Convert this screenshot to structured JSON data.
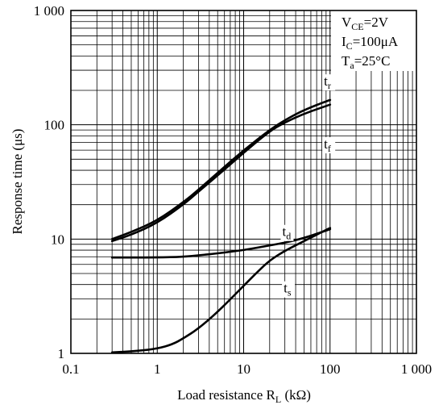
{
  "chart_data": {
    "type": "line",
    "xlabel": "Load resistance R",
    "xlabel_sub": "L",
    "xlabel_unit": " (kΩ)",
    "ylabel": "Response time (μs)",
    "xscale": "log",
    "yscale": "log",
    "xlim": [
      0.1,
      1000
    ],
    "ylim": [
      1,
      1000
    ],
    "grid": true,
    "x_ticks": [
      {
        "value": 0.1,
        "label": "0.1"
      },
      {
        "value": 1,
        "label": "1"
      },
      {
        "value": 10,
        "label": "10"
      },
      {
        "value": 100,
        "label": "100"
      },
      {
        "value": 1000,
        "label": "1 000"
      }
    ],
    "y_ticks": [
      {
        "value": 1,
        "label": "1"
      },
      {
        "value": 10,
        "label": "10"
      },
      {
        "value": 100,
        "label": "100"
      },
      {
        "value": 1000,
        "label": "1 000"
      }
    ],
    "conditions": [
      {
        "main": "V",
        "sub": "CE",
        "rest": "=2V"
      },
      {
        "main": "I",
        "sub": "C",
        "rest": "=100μA"
      },
      {
        "main": "T",
        "sub": "a",
        "rest": "=25°C"
      }
    ],
    "series": [
      {
        "name": "tr",
        "label_main": "t",
        "label_sub": "r",
        "label_at": {
          "x": 85,
          "y": 220
        },
        "x": [
          0.3,
          0.5,
          1,
          2,
          3,
          5,
          10,
          20,
          30,
          50,
          100
        ],
        "y": [
          10,
          11.5,
          14.5,
          21,
          27,
          38,
          60,
          90,
          110,
          135,
          165
        ]
      },
      {
        "name": "tf",
        "label_main": "t",
        "label_sub": "f",
        "label_at": {
          "x": 85,
          "y": 62
        },
        "x": [
          0.3,
          0.5,
          1,
          2,
          3,
          5,
          10,
          20,
          30,
          50,
          100
        ],
        "y": [
          9.6,
          10.9,
          13.8,
          20,
          26,
          36,
          57,
          88,
          105,
          125,
          150
        ]
      },
      {
        "name": "td",
        "label_main": "t",
        "label_sub": "d",
        "label_at": {
          "x": 28,
          "y": 10.6
        },
        "x": [
          0.3,
          1,
          2,
          3,
          5,
          10,
          20,
          30,
          50,
          100
        ],
        "y": [
          6.9,
          6.9,
          7.0,
          7.2,
          7.5,
          8.0,
          8.8,
          9.3,
          10.2,
          12.2
        ]
      },
      {
        "name": "ts",
        "label_main": "t",
        "label_sub": "s",
        "label_at": {
          "x": 29,
          "y": 3.4
        },
        "x": [
          0.3,
          0.6,
          1,
          1.5,
          2,
          3,
          5,
          10,
          15,
          20,
          30,
          50,
          100
        ],
        "y": [
          1.02,
          1.05,
          1.1,
          1.2,
          1.35,
          1.65,
          2.3,
          3.9,
          5.3,
          6.5,
          7.9,
          9.6,
          12.5
        ]
      }
    ]
  }
}
